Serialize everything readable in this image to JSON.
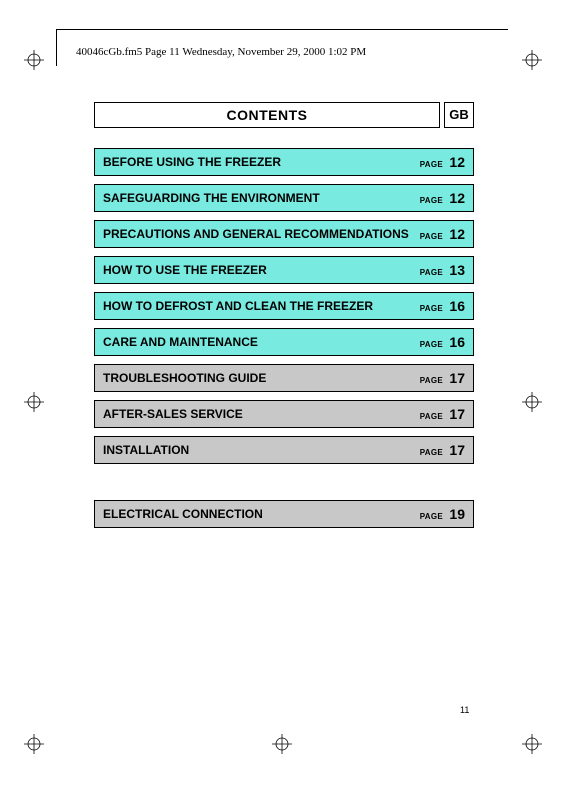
{
  "header": {
    "text": "40046cGb.fm5  Page 11  Wednesday, November 29, 2000  1:02 PM"
  },
  "title": {
    "label": "CONTENTS",
    "lang": "GB"
  },
  "colors": {
    "cyan": "#78eae0",
    "grey": "#c8c8c8",
    "border": "#000000",
    "background": "#ffffff"
  },
  "toc": [
    {
      "title": "BEFORE USING THE FREEZER",
      "page_label": "PAGE",
      "page": "12",
      "bg": "#78eae0",
      "lines": 1
    },
    {
      "title": "SAFEGUARDING THE ENVIRONMENT",
      "page_label": "PAGE",
      "page": "12",
      "bg": "#78eae0",
      "lines": 1
    },
    {
      "title": "PRECAUTIONS AND GENERAL RECOMMENDATIONS",
      "page_label": "PAGE",
      "page": "12",
      "bg": "#78eae0",
      "lines": 2
    },
    {
      "title": "HOW TO USE THE FREEZER",
      "page_label": "PAGE",
      "page": "13",
      "bg": "#78eae0",
      "lines": 1
    },
    {
      "title": "HOW TO DEFROST AND CLEAN THE FREEZER",
      "page_label": "PAGE",
      "page": "16",
      "bg": "#78eae0",
      "lines": 2
    },
    {
      "title": "CARE AND MAINTENANCE",
      "page_label": "PAGE",
      "page": "16",
      "bg": "#78eae0",
      "lines": 1
    },
    {
      "title": "TROUBLESHOOTING GUIDE",
      "page_label": "PAGE",
      "page": "17",
      "bg": "#c8c8c8",
      "lines": 1
    },
    {
      "title": "AFTER-SALES SERVICE",
      "page_label": "PAGE",
      "page": "17",
      "bg": "#c8c8c8",
      "lines": 1
    },
    {
      "title": "INSTALLATION",
      "page_label": "PAGE",
      "page": "17",
      "bg": "#c8c8c8",
      "lines": 1
    },
    {
      "gap": true
    },
    {
      "title": "ELECTRICAL CONNECTION",
      "page_label": "PAGE",
      "page": "19",
      "bg": "#c8c8c8",
      "lines": 1
    }
  ],
  "footer": {
    "page_number": "11"
  }
}
